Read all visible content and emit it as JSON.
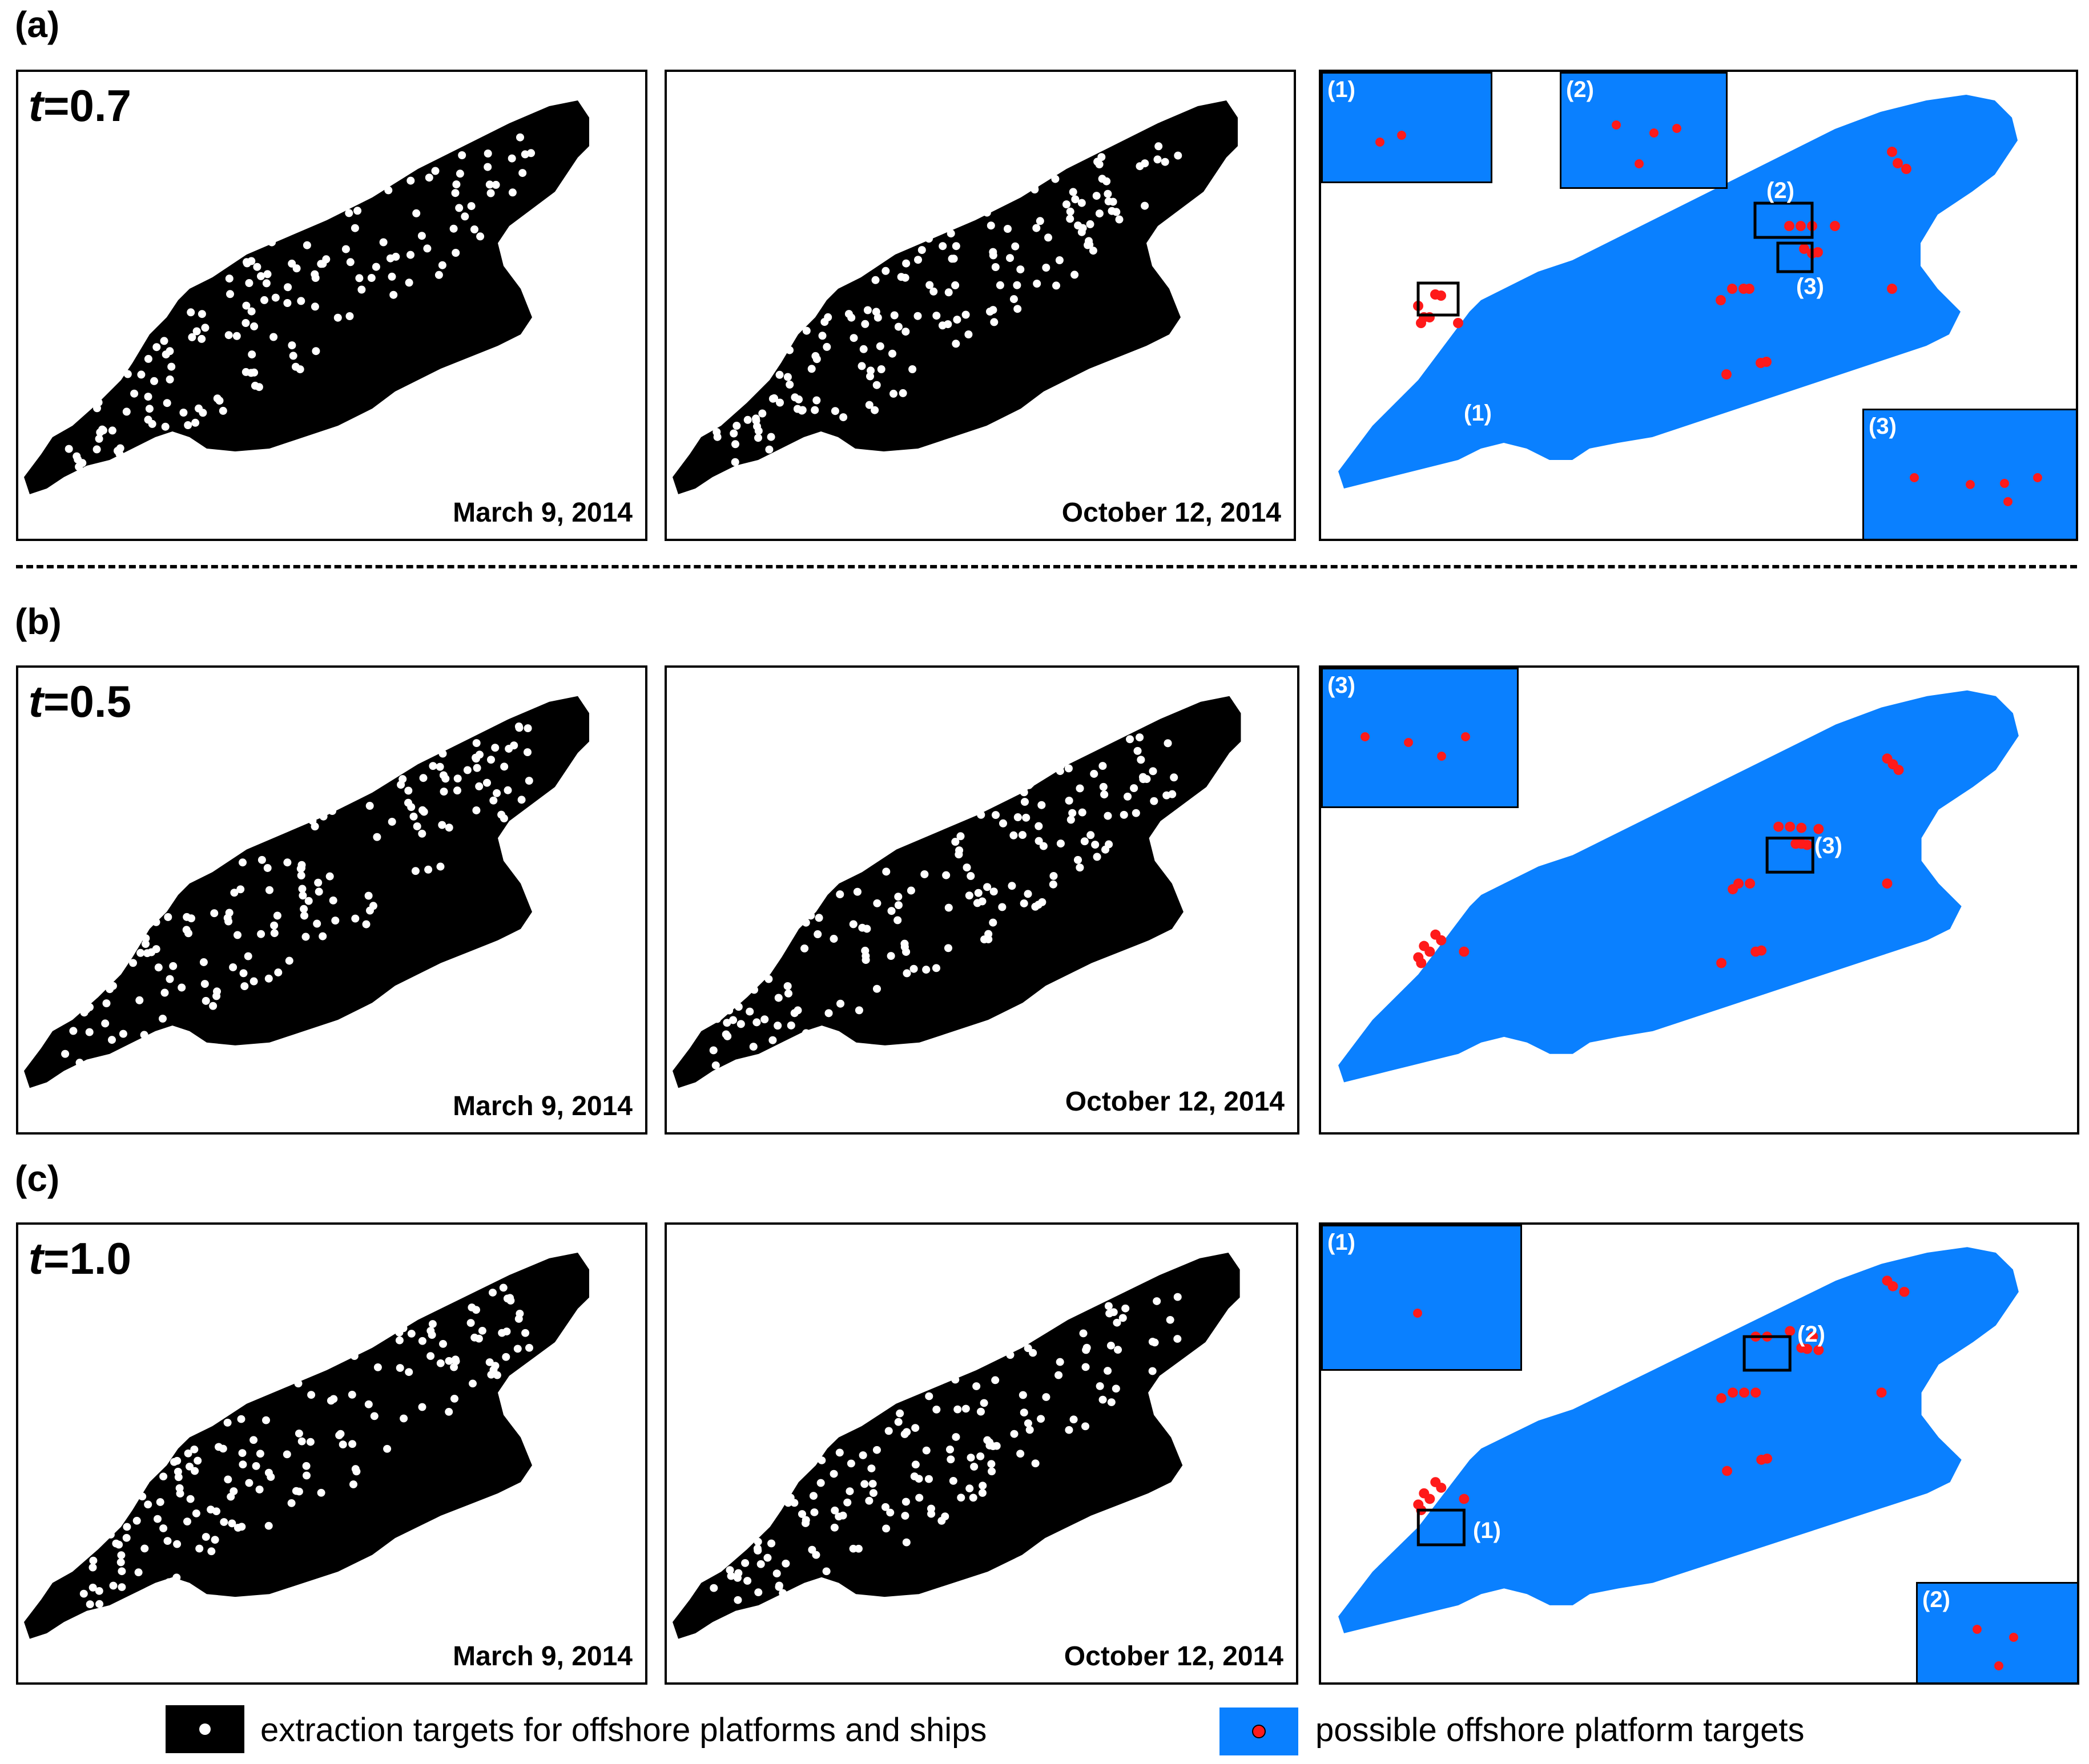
{
  "rows": [
    {
      "label": "(a)",
      "threshold_var": "t",
      "threshold_value": "=0.7",
      "dates": [
        "March 9, 2014",
        "October 12, 2014"
      ],
      "insets": [
        "(1)",
        "(2)",
        "(3)"
      ],
      "map_labels": [
        "(2)",
        "(3)",
        "(1)"
      ]
    },
    {
      "label": "(b)",
      "threshold_var": "t",
      "threshold_value": "=0.5",
      "dates": [
        "March 9, 2014",
        "October 12, 2014"
      ],
      "insets": [
        "(3)"
      ],
      "map_labels": [
        "(3)"
      ]
    },
    {
      "label": "(c)",
      "threshold_var": "t",
      "threshold_value": "=1.0",
      "dates": [
        "March 9, 2014",
        "October 12, 2014"
      ],
      "insets": [
        "(1)",
        "(2)"
      ],
      "map_labels": [
        "(2)",
        "(1)"
      ]
    }
  ],
  "legend": {
    "black_label": "extraction targets for offshore platforms and ships",
    "blue_label": "possible offshore platform targets"
  },
  "colors": {
    "land_mask": "#000000",
    "water": "#0a80ff",
    "target_white": "#ffffff",
    "target_red": "#ff1a1a"
  }
}
